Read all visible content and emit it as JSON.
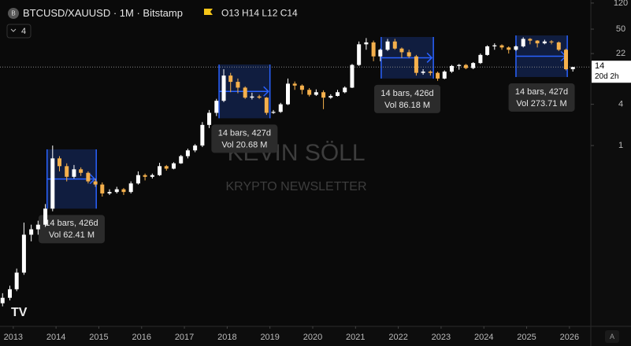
{
  "chart_data": {
    "type": "candlestick",
    "title": "BTCUSD/XAUUSD · 1M · Bitstamp",
    "ohlc_label": "O13 H14 L12 C14",
    "indicator_count": "4",
    "watermark": "KEVIN SÖLL",
    "watermark_subtitle": "KRYPTO NEWSLETTER",
    "last_price": 14,
    "countdown": "20d 2h",
    "log_scale": true,
    "up_color": "#ffffff",
    "down_color": "#f5b04c",
    "xlim": [
      2012.69,
      2026.5
    ],
    "xticks": [
      2013,
      2014,
      2015,
      2016,
      2017,
      2018,
      2019,
      2020,
      2021,
      2022,
      2023,
      2024,
      2025,
      2026
    ],
    "ylim": [
      0.0023,
      133
    ],
    "yticks": [
      120,
      50,
      22,
      4,
      1
    ],
    "x": [
      2012.75,
      2012.92,
      2013.08,
      2013.25,
      2013.42,
      2013.58,
      2013.75,
      2013.92,
      2014.08,
      2014.25,
      2014.42,
      2014.58,
      2014.75,
      2014.92,
      2015.08,
      2015.25,
      2015.42,
      2015.58,
      2015.75,
      2015.92,
      2016.08,
      2016.25,
      2016.42,
      2016.58,
      2016.75,
      2016.92,
      2017.08,
      2017.25,
      2017.42,
      2017.58,
      2017.75,
      2017.92,
      2018.08,
      2018.25,
      2018.42,
      2018.58,
      2018.75,
      2018.92,
      2019.08,
      2019.25,
      2019.42,
      2019.58,
      2019.75,
      2019.92,
      2020.08,
      2020.25,
      2020.42,
      2020.58,
      2020.75,
      2020.92,
      2021.08,
      2021.25,
      2021.42,
      2021.58,
      2021.75,
      2021.92,
      2022.08,
      2022.25,
      2022.42,
      2022.58,
      2022.75,
      2022.92,
      2023.08,
      2023.25,
      2023.42,
      2023.58,
      2023.75,
      2023.92,
      2024.08,
      2024.25,
      2024.42,
      2024.58,
      2024.75,
      2024.92,
      2025.08,
      2025.25,
      2025.42,
      2025.58,
      2025.75,
      2025.92,
      2026.08
    ],
    "candles": [
      [
        0.005,
        0.007,
        0.0045,
        0.006
      ],
      [
        0.006,
        0.009,
        0.0055,
        0.008
      ],
      [
        0.008,
        0.016,
        0.0075,
        0.014
      ],
      [
        0.014,
        0.075,
        0.013,
        0.05
      ],
      [
        0.05,
        0.07,
        0.04,
        0.06
      ],
      [
        0.06,
        0.08,
        0.05,
        0.07
      ],
      [
        0.07,
        0.14,
        0.065,
        0.12
      ],
      [
        0.12,
        1.0,
        0.11,
        0.65
      ],
      [
        0.65,
        0.7,
        0.42,
        0.5
      ],
      [
        0.5,
        0.55,
        0.3,
        0.35
      ],
      [
        0.35,
        0.52,
        0.33,
        0.45
      ],
      [
        0.45,
        0.48,
        0.36,
        0.4
      ],
      [
        0.4,
        0.42,
        0.28,
        0.3
      ],
      [
        0.3,
        0.33,
        0.25,
        0.27
      ],
      [
        0.27,
        0.29,
        0.18,
        0.2
      ],
      [
        0.2,
        0.23,
        0.19,
        0.21
      ],
      [
        0.21,
        0.25,
        0.2,
        0.23
      ],
      [
        0.23,
        0.24,
        0.19,
        0.21
      ],
      [
        0.21,
        0.3,
        0.2,
        0.28
      ],
      [
        0.28,
        0.42,
        0.27,
        0.37
      ],
      [
        0.37,
        0.39,
        0.31,
        0.35
      ],
      [
        0.35,
        0.39,
        0.33,
        0.37
      ],
      [
        0.37,
        0.56,
        0.36,
        0.5
      ],
      [
        0.5,
        0.52,
        0.43,
        0.46
      ],
      [
        0.46,
        0.57,
        0.45,
        0.55
      ],
      [
        0.55,
        0.73,
        0.54,
        0.7
      ],
      [
        0.7,
        0.9,
        0.65,
        0.85
      ],
      [
        0.85,
        1.05,
        0.8,
        1.0
      ],
      [
        1.0,
        2.2,
        0.95,
        2.0
      ],
      [
        2.0,
        3.3,
        1.8,
        3.0
      ],
      [
        3.0,
        4.8,
        2.7,
        4.5
      ],
      [
        4.5,
        13,
        4.3,
        10.5
      ],
      [
        10.5,
        11.5,
        6,
        8.5
      ],
      [
        8.5,
        9.5,
        5.8,
        7.0
      ],
      [
        7.0,
        7.3,
        4.8,
        5.0
      ],
      [
        5.0,
        5.9,
        4.7,
        5.2
      ],
      [
        5.2,
        5.5,
        4.8,
        5.0
      ],
      [
        5.0,
        5.1,
        2.8,
        3.0
      ],
      [
        3.0,
        3.3,
        2.9,
        3.1
      ],
      [
        3.1,
        4.2,
        3.0,
        4.0
      ],
      [
        4.0,
        9.5,
        3.9,
        8.0
      ],
      [
        8.0,
        8.6,
        6.5,
        7.5
      ],
      [
        7.5,
        7.8,
        5.6,
        6.5
      ],
      [
        6.5,
        6.9,
        5.2,
        5.5
      ],
      [
        5.5,
        6.6,
        5.3,
        6.0
      ],
      [
        6.0,
        6.4,
        3.4,
        5.0
      ],
      [
        5.0,
        5.6,
        4.8,
        5.3
      ],
      [
        5.3,
        6.5,
        5.2,
        6.0
      ],
      [
        6.0,
        7.3,
        5.8,
        7.0
      ],
      [
        7.0,
        15.5,
        6.9,
        15
      ],
      [
        15,
        33,
        14.5,
        30
      ],
      [
        30,
        37,
        25,
        32
      ],
      [
        32,
        34,
        17,
        20
      ],
      [
        20,
        26,
        17,
        25
      ],
      [
        25,
        36,
        24,
        33
      ],
      [
        33,
        36,
        25,
        26
      ],
      [
        26,
        27,
        19,
        23
      ],
      [
        23,
        25,
        19,
        20
      ],
      [
        20,
        21,
        10.5,
        11.5
      ],
      [
        11.5,
        13,
        10.8,
        12
      ],
      [
        12,
        12.5,
        10.5,
        11.5
      ],
      [
        11.5,
        12,
        8.8,
        9.5
      ],
      [
        9.5,
        12.5,
        9.3,
        12
      ],
      [
        12,
        15,
        11.5,
        14.5
      ],
      [
        14.5,
        15.5,
        12.8,
        15
      ],
      [
        15,
        15.5,
        13,
        13.5
      ],
      [
        13.5,
        16.5,
        13,
        16
      ],
      [
        16,
        22,
        15.5,
        21
      ],
      [
        21,
        29,
        20.5,
        28
      ],
      [
        28,
        31,
        25,
        29
      ],
      [
        29,
        30,
        25,
        27
      ],
      [
        27,
        28,
        22,
        25
      ],
      [
        25,
        29,
        24,
        28
      ],
      [
        28,
        38,
        27,
        36
      ],
      [
        36,
        37,
        30,
        34
      ],
      [
        34,
        34.5,
        27,
        31
      ],
      [
        31,
        35,
        30,
        33
      ],
      [
        33,
        34.5,
        30,
        32
      ],
      [
        32,
        33,
        24,
        25
      ],
      [
        25,
        26,
        12.5,
        13
      ],
      [
        13,
        14,
        12,
        14
      ]
    ],
    "annotations": [
      {
        "x": [
          2013.79,
          2014.94
        ],
        "y": [
          0.12,
          0.88
        ],
        "text": "14 bars, 426d",
        "volume": "Vol 62.41 M"
      },
      {
        "x": [
          2017.81,
          2019.0
        ],
        "y": [
          2.5,
          15.2
        ],
        "text": "14 bars, 427d",
        "volume": "Vol 20.68 M"
      },
      {
        "x": [
          2021.6,
          2022.82
        ],
        "y": [
          9.5,
          38.4
        ],
        "text": "14 bars, 426d",
        "volume": "Vol 86.18 M"
      },
      {
        "x": [
          2024.75,
          2025.95
        ],
        "y": [
          10.0,
          40.4
        ],
        "text": "14 bars, 427d",
        "volume": "Vol 273.71 M"
      }
    ]
  }
}
